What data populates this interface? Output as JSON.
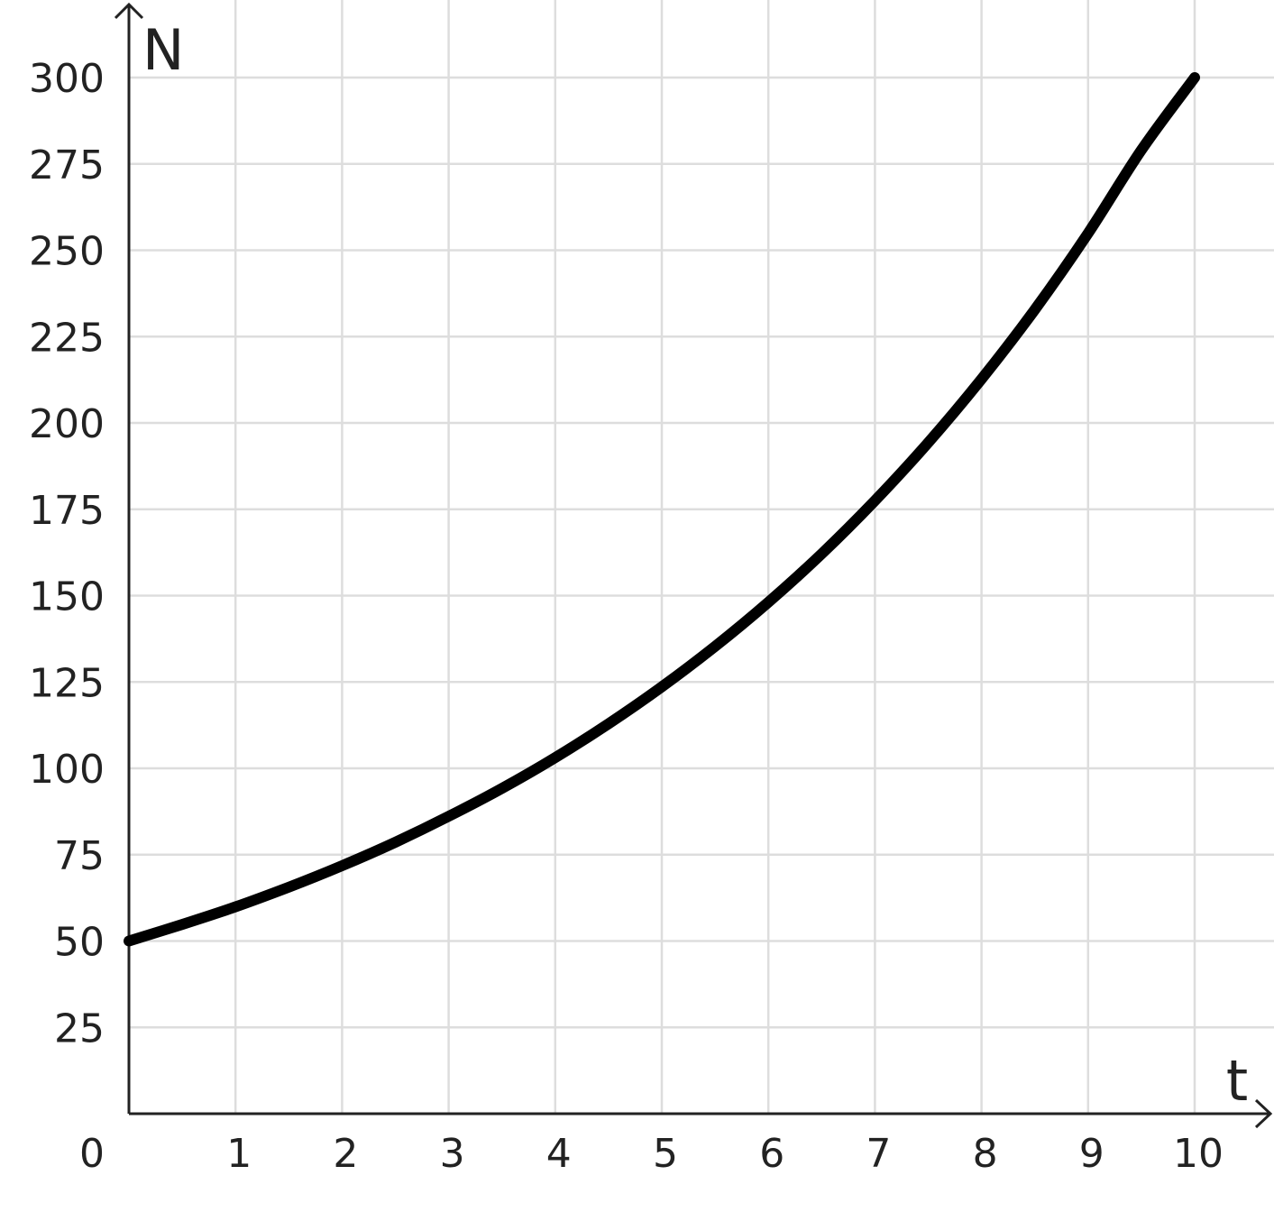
{
  "chart_data": {
    "type": "line",
    "xlabel": "t",
    "ylabel": "N",
    "xlim": [
      0,
      10
    ],
    "ylim": [
      0,
      300
    ],
    "grid": true,
    "origin_label": "0",
    "x_ticks": [
      {
        "value": 1,
        "label": "1"
      },
      {
        "value": 2,
        "label": "2"
      },
      {
        "value": 3,
        "label": "3"
      },
      {
        "value": 4,
        "label": "4"
      },
      {
        "value": 5,
        "label": "5"
      },
      {
        "value": 6,
        "label": "6"
      },
      {
        "value": 7,
        "label": "7"
      },
      {
        "value": 8,
        "label": "8"
      },
      {
        "value": 9,
        "label": "9"
      },
      {
        "value": 10,
        "label": "10"
      }
    ],
    "y_ticks": [
      {
        "value": 25,
        "label": "25"
      },
      {
        "value": 50,
        "label": "50"
      },
      {
        "value": 75,
        "label": "75"
      },
      {
        "value": 100,
        "label": "100"
      },
      {
        "value": 125,
        "label": "125"
      },
      {
        "value": 150,
        "label": "150"
      },
      {
        "value": 175,
        "label": "175"
      },
      {
        "value": 200,
        "label": "200"
      },
      {
        "value": 225,
        "label": "225"
      },
      {
        "value": 250,
        "label": "250"
      },
      {
        "value": 275,
        "label": "275"
      },
      {
        "value": 300,
        "label": "300"
      }
    ],
    "series": [
      {
        "x": [
          0,
          0.5,
          1,
          1.5,
          2,
          2.5,
          3,
          3.5,
          4,
          4.5,
          5,
          5.5,
          6,
          6.5,
          7,
          7.5,
          8,
          8.5,
          9,
          9.5,
          10
        ],
        "y": [
          50,
          54.8,
          59.9,
          65.6,
          71.8,
          78.6,
          86.1,
          94.2,
          103.1,
          112.9,
          123.6,
          135.3,
          148.1,
          162.1,
          177.5,
          194.3,
          212.7,
          232.8,
          254.9,
          279.0,
          300
        ]
      }
    ],
    "colors": {
      "line": "#000000",
      "grid": "#dddddd",
      "axis": "#222222"
    }
  }
}
